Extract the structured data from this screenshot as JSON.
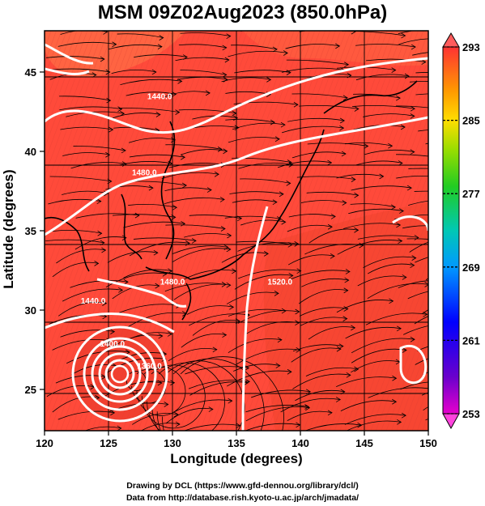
{
  "title": "MSM 09Z02Aug2023 (850.0hPa)",
  "axes": {
    "x_label": "Longitude (degrees)",
    "y_label": "Latitude  (degrees)",
    "x_ticks": [
      "120",
      "125",
      "130",
      "135",
      "140",
      "145",
      "150"
    ],
    "y_ticks": [
      "25",
      "30",
      "35",
      "40",
      "45"
    ],
    "x_range": [
      120,
      150
    ],
    "y_range": [
      22.4,
      47.6
    ]
  },
  "colorbar": {
    "labels": [
      "293",
      "285",
      "277",
      "269",
      "261",
      "253"
    ],
    "range": [
      253,
      293
    ],
    "colors": [
      "#e600cc",
      "#6600cc",
      "#0000ff",
      "#0088ff",
      "#00c8c8",
      "#00cc66",
      "#33cc00",
      "#ccee00",
      "#ffcc00",
      "#ff8800",
      "#ff4400",
      "#ff3333"
    ]
  },
  "field": {
    "dominant_color": "#ff4433",
    "contours": [
      {
        "label": "1440.0",
        "lon": 129.0,
        "lat": 43.3
      },
      {
        "label": "1480.0",
        "lon": 127.8,
        "lat": 38.5
      },
      {
        "label": "1520.0",
        "lon": 138.4,
        "lat": 31.6
      },
      {
        "label": "1480.0",
        "lon": 130.0,
        "lat": 31.6
      },
      {
        "label": "1440.0",
        "lon": 123.8,
        "lat": 30.4
      },
      {
        "label": "1400.0",
        "lon": 125.3,
        "lat": 27.7
      },
      {
        "label": "1360.0",
        "lon": 128.2,
        "lat": 26.3
      }
    ]
  },
  "credits": {
    "line1": "Drawing by DCL (https://www.gfd-dennou.org/library/dcl/)",
    "line2": "Data from http://database.rish.kyoto-u.ac.jp/arch/jmadata/"
  }
}
